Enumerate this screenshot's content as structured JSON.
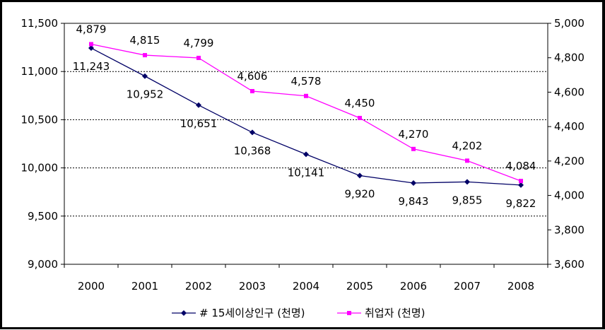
{
  "chart_data": {
    "type": "line",
    "categories": [
      "2000",
      "2001",
      "2002",
      "2003",
      "2004",
      "2005",
      "2006",
      "2007",
      "2008"
    ],
    "series": [
      {
        "name": "# 15세이상인구 (천명)",
        "axis": "left",
        "color": "#000066",
        "marker": "diamond",
        "values": [
          11243,
          10952,
          10651,
          10368,
          10141,
          9920,
          9843,
          9855,
          9822
        ],
        "labels": [
          "11,243",
          "10,952",
          "10,651",
          "10,368",
          "10,141",
          "9,920",
          "9,843",
          "9,855",
          "9,822"
        ]
      },
      {
        "name": "취업자 (천명)",
        "axis": "right",
        "color": "#ff00ff",
        "marker": "square",
        "values": [
          4879,
          4815,
          4799,
          4606,
          4578,
          4450,
          4270,
          4202,
          4084
        ],
        "labels": [
          "4,879",
          "4,815",
          "4,799",
          "4,606",
          "4,578",
          "4,450",
          "4,270",
          "4,202",
          "4,084"
        ]
      }
    ],
    "y_left": {
      "min": 9000,
      "max": 11500,
      "step": 500,
      "tick_labels": [
        "9,000",
        "9,500",
        "10,000",
        "10,500",
        "11,000",
        "11,500"
      ]
    },
    "y_right": {
      "min": 3600,
      "max": 5000,
      "step": 200,
      "tick_labels": [
        "3,600",
        "3,800",
        "4,000",
        "4,200",
        "4,400",
        "4,600",
        "4,800",
        "5,000"
      ]
    },
    "grid": "horizontal-dotted",
    "legend_position": "bottom"
  }
}
